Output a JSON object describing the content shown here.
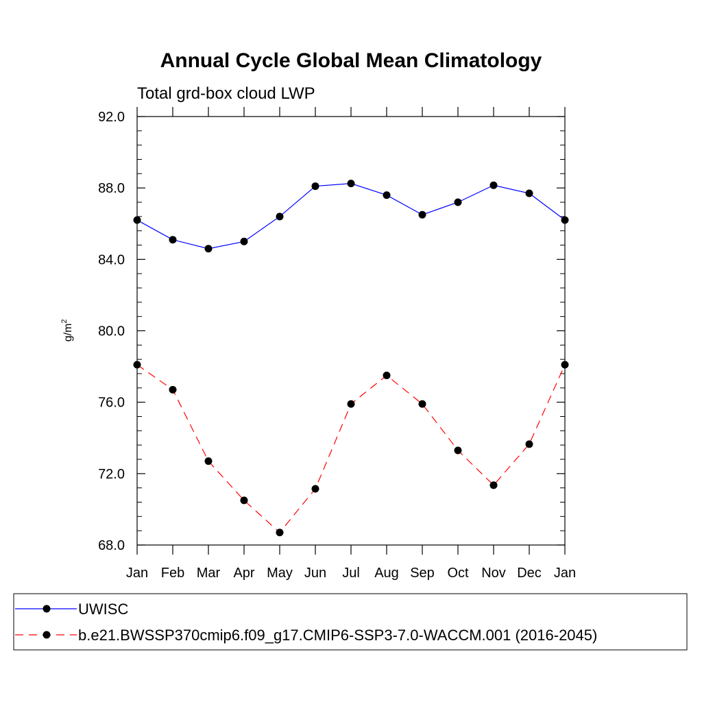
{
  "chart_data": {
    "type": "line",
    "title": "Annual Cycle Global Mean Climatology",
    "subtitle": "Total grd-box cloud LWP",
    "ylabel_base": "g/m",
    "ylabel_sup": "2",
    "xlabel": "",
    "categories": [
      "Jan",
      "Feb",
      "Mar",
      "Apr",
      "May",
      "Jun",
      "Jul",
      "Aug",
      "Sep",
      "Oct",
      "Nov",
      "Dec",
      "Jan"
    ],
    "ylim": [
      68.0,
      92.0
    ],
    "yticks": [
      "68.0",
      "72.0",
      "76.0",
      "80.0",
      "84.0",
      "88.0",
      "92.0"
    ],
    "grid": false,
    "legend_position": "bottom",
    "series": [
      {
        "name": "UWISC",
        "color": "#0000ff",
        "line_style": "solid",
        "marker": "filled-circle",
        "values": [
          86.2,
          85.1,
          84.6,
          85.0,
          86.4,
          88.1,
          88.25,
          87.6,
          86.5,
          87.2,
          88.15,
          87.7,
          86.2
        ]
      },
      {
        "name": "b.e21.BWSSP370cmip6.f09_g17.CMIP6-SSP3-7.0-WACCM.001 (2016-2045)",
        "color": "#ff0000",
        "line_style": "dashed",
        "marker": "filled-circle",
        "values": [
          78.1,
          76.7,
          72.7,
          70.5,
          68.7,
          71.15,
          75.9,
          77.5,
          75.9,
          73.3,
          71.35,
          73.65,
          78.1
        ]
      }
    ]
  }
}
